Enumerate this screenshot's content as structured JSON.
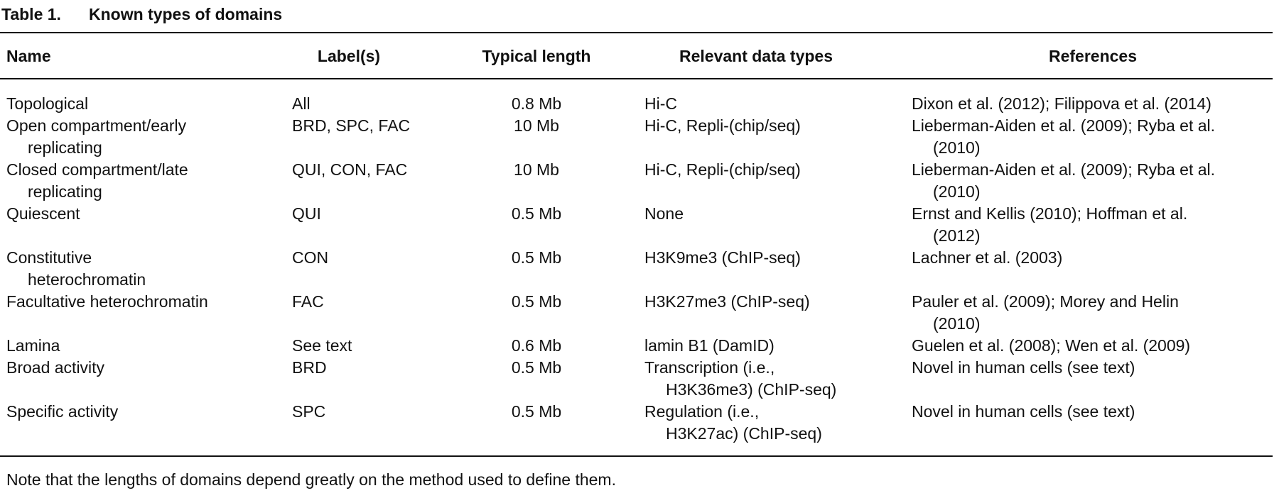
{
  "caption": {
    "label": "Table 1.",
    "title": "Known types of domains"
  },
  "table": {
    "headers": [
      "Name",
      "Label(s)",
      "Typical length",
      "Relevant data types",
      "References"
    ],
    "rows": [
      [
        [
          "Topological"
        ],
        [
          "All"
        ],
        [
          "0.8 Mb"
        ],
        [
          "Hi-C"
        ],
        [
          "Dixon et al. (2012); Filippova et al. (2014)"
        ]
      ],
      [
        [
          "Open compartment/early",
          "replicating"
        ],
        [
          "BRD, SPC, FAC"
        ],
        [
          "10 Mb"
        ],
        [
          "Hi-C, Repli-(chip/seq)"
        ],
        [
          "Lieberman-Aiden et al. (2009); Ryba et al.",
          "(2010)"
        ]
      ],
      [
        [
          "Closed compartment/late",
          "replicating"
        ],
        [
          "QUI, CON, FAC"
        ],
        [
          "10 Mb"
        ],
        [
          "Hi-C, Repli-(chip/seq)"
        ],
        [
          "Lieberman-Aiden et al. (2009); Ryba et al.",
          "(2010)"
        ]
      ],
      [
        [
          "Quiescent"
        ],
        [
          "QUI"
        ],
        [
          "0.5 Mb"
        ],
        [
          "None"
        ],
        [
          "Ernst and Kellis (2010); Hoffman et al.",
          "(2012)"
        ]
      ],
      [
        [
          "Constitutive",
          "heterochromatin"
        ],
        [
          "CON"
        ],
        [
          "0.5 Mb"
        ],
        [
          "H3K9me3 (ChIP-seq)"
        ],
        [
          "Lachner et al. (2003)"
        ]
      ],
      [
        [
          "Facultative heterochromatin"
        ],
        [
          "FAC"
        ],
        [
          "0.5 Mb"
        ],
        [
          "H3K27me3 (ChIP-seq)"
        ],
        [
          "Pauler et al. (2009); Morey and Helin",
          "(2010)"
        ]
      ],
      [
        [
          "Lamina"
        ],
        [
          "See text"
        ],
        [
          "0.6 Mb"
        ],
        [
          "lamin B1 (DamID)"
        ],
        [
          "Guelen et al. (2008); Wen et al. (2009)"
        ]
      ],
      [
        [
          "Broad activity"
        ],
        [
          "BRD"
        ],
        [
          "0.5 Mb"
        ],
        [
          "Transcription (i.e.,",
          "H3K36me3) (ChIP-seq)"
        ],
        [
          "Novel in human cells (see text)"
        ]
      ],
      [
        [
          "Specific activity"
        ],
        [
          "SPC"
        ],
        [
          "0.5 Mb"
        ],
        [
          "Regulation (i.e.,",
          "H3K27ac) (ChIP-seq)"
        ],
        [
          "Novel in human cells (see text)"
        ]
      ]
    ]
  },
  "note": "Note that the lengths of domains depend greatly on the method used to define them."
}
